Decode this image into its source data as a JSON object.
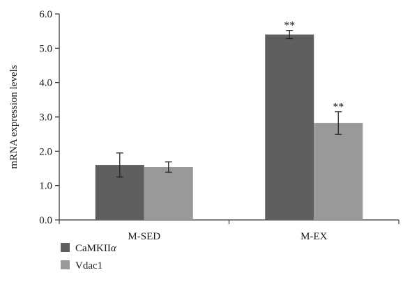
{
  "chart_data": {
    "type": "bar",
    "categories": [
      "M-SED",
      "M-EX"
    ],
    "series": [
      {
        "name": "CaMKIIα",
        "name_base": "CaMKII",
        "name_italic_suffix": "α",
        "color": "#5f5f5f",
        "values": [
          1.6,
          5.4
        ],
        "errors": [
          0.35,
          0.12
        ],
        "significance": [
          "",
          "**"
        ]
      },
      {
        "name": "Vdac1",
        "color": "#999999",
        "values": [
          1.54,
          2.82
        ],
        "errors": [
          0.15,
          0.33
        ],
        "significance": [
          "",
          "**"
        ]
      }
    ],
    "xlabel": "",
    "ylabel": "mRNA expression levels",
    "ylim": [
      0,
      6
    ],
    "yticks": [
      "0.0",
      "1.0",
      "2.0",
      "3.0",
      "4.0",
      "5.0",
      "6.0"
    ],
    "grid": false,
    "legend_position": "bottom-left"
  }
}
